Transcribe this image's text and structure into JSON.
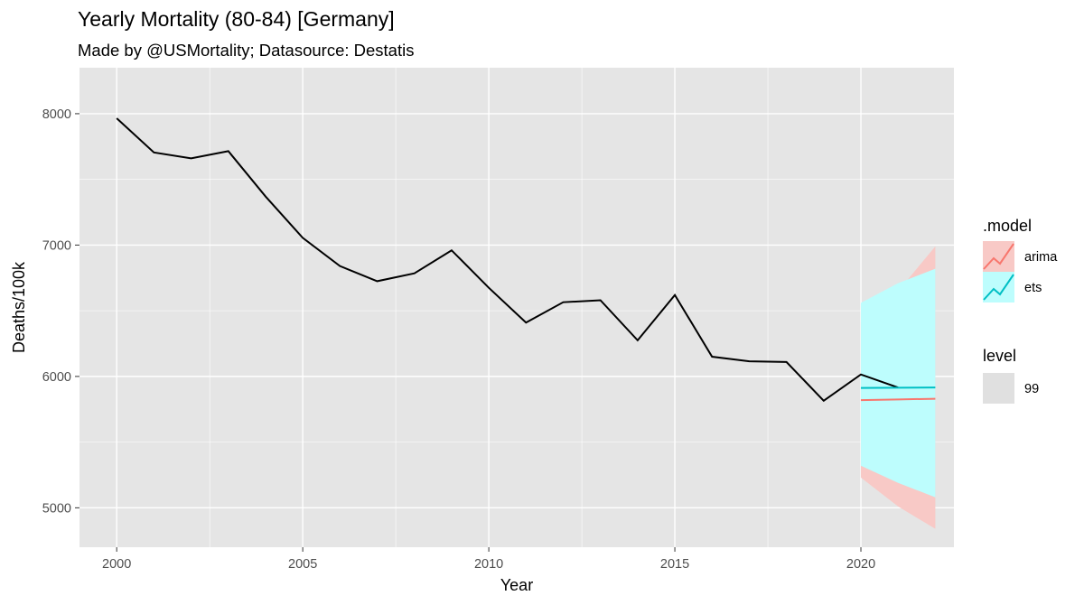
{
  "chart_data": {
    "type": "line",
    "title": "Yearly Mortality (80-84) [Germany]",
    "subtitle": "Made by @USMortality; Datasource: Destatis",
    "xlabel": "Year",
    "ylabel": "Deaths/100k",
    "xlim": [
      1999,
      2022.5
    ],
    "ylim": [
      4700,
      8350
    ],
    "x_ticks": [
      2000,
      2005,
      2010,
      2015,
      2020
    ],
    "y_ticks": [
      5000,
      6000,
      7000,
      8000
    ],
    "grid": true,
    "legend_position": "right",
    "colors": {
      "panel": "#e5e5e5",
      "grid": "#ffffff",
      "observed": "#000000",
      "arima": "#f8766d",
      "ets": "#00bfc4",
      "arima_band": "#f8c9c6",
      "ets_band": "#bdfdfd",
      "level_key": "#e0e0e0"
    },
    "observed": {
      "x": [
        2000,
        2001,
        2002,
        2003,
        2004,
        2005,
        2006,
        2007,
        2008,
        2009,
        2010,
        2011,
        2012,
        2013,
        2014,
        2015,
        2016,
        2017,
        2018,
        2019,
        2020,
        2021
      ],
      "y": [
        7965,
        7705,
        7660,
        7715,
        7370,
        7055,
        6840,
        6725,
        6785,
        6960,
        6675,
        6410,
        6565,
        6580,
        6275,
        6620,
        6150,
        6115,
        6110,
        5815,
        6015,
        5915
      ]
    },
    "forecasts": [
      {
        "name": "arima",
        "x": [
          2020,
          2021,
          2022
        ],
        "mean": [
          5820,
          5825,
          5830
        ],
        "lower": [
          5230,
          5010,
          4840
        ],
        "upper": [
          6410,
          6650,
          6990
        ]
      },
      {
        "name": "ets",
        "x": [
          2020,
          2021,
          2022
        ],
        "mean": [
          5912,
          5914,
          5916
        ],
        "lower": [
          5320,
          5190,
          5080
        ],
        "upper": [
          6560,
          6710,
          6820
        ]
      }
    ],
    "legend": {
      "model_title": ".model",
      "model_entries": [
        "arima",
        "ets"
      ],
      "level_title": "level",
      "level_entries": [
        "99"
      ]
    }
  }
}
